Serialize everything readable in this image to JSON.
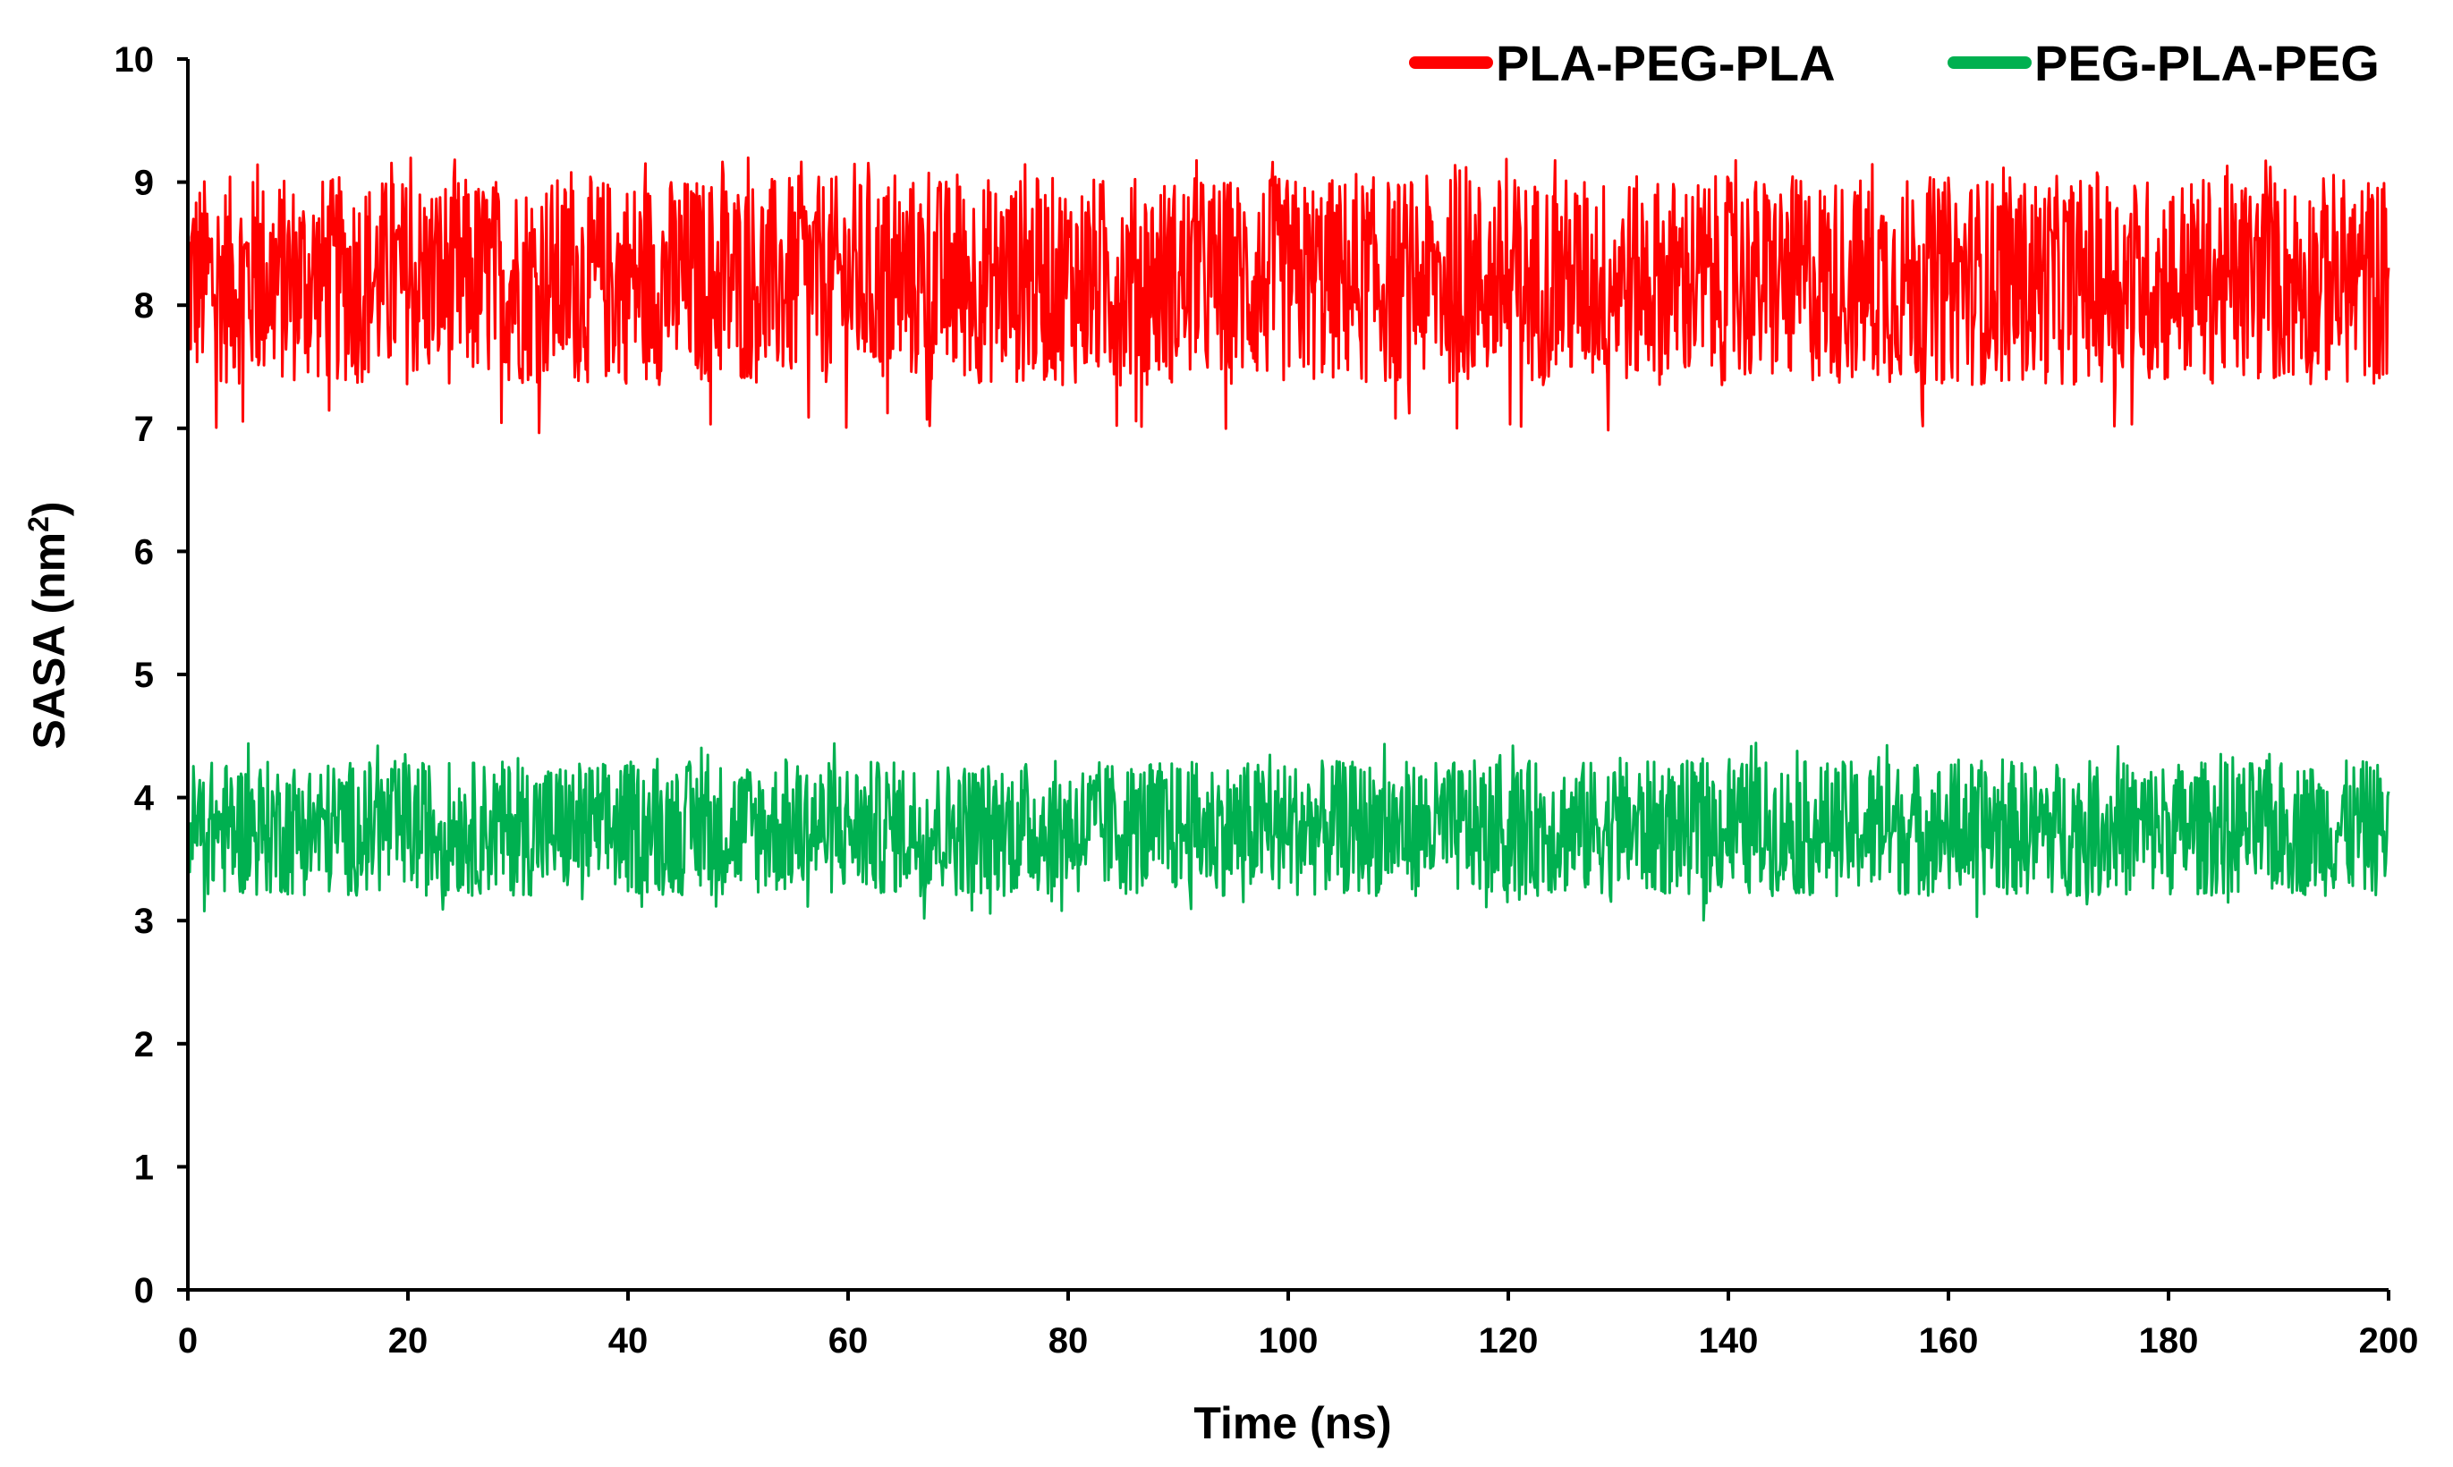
{
  "chart_data": {
    "type": "line",
    "xlabel": "Time (ns)",
    "ylabel_main": "SASA (nm",
    "ylabel_sup": "2",
    "ylabel_close": ")",
    "xlim": [
      0,
      200
    ],
    "ylim": [
      0,
      10
    ],
    "xticks": [
      0,
      20,
      40,
      60,
      80,
      100,
      120,
      140,
      160,
      180,
      200
    ],
    "yticks": [
      0,
      1,
      2,
      3,
      4,
      5,
      6,
      7,
      8,
      9,
      10
    ],
    "grid": false,
    "legend_position": "top-right",
    "series": [
      {
        "name": "PLA-PEG-PLA",
        "color": "#ff0000",
        "edge_color": "#c00000",
        "x_range": [
          0,
          200
        ],
        "mean": 8.2,
        "typical_range": [
          7.35,
          9.05
        ],
        "min": 6.95,
        "max": 9.2
      },
      {
        "name": "PEG-PLA-PEG",
        "color": "#00b050",
        "edge_color": "#1e7a32",
        "x_range": [
          0,
          200
        ],
        "mean": 3.75,
        "typical_range": [
          3.2,
          4.3
        ],
        "min": 3.0,
        "max": 4.45
      }
    ]
  }
}
